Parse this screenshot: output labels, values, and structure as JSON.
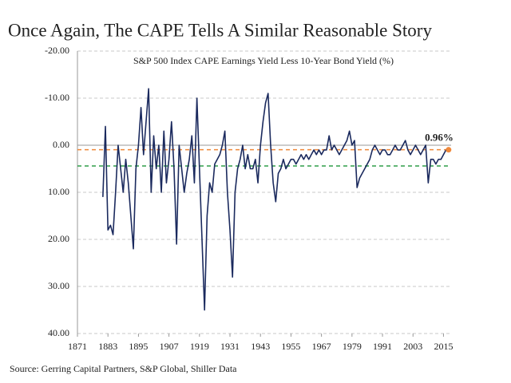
{
  "chart_data": {
    "type": "line",
    "title": "Once Again, The CAPE Tells A Similar Reasonable Story",
    "subtitle": "S&P 500 Index CAPE Earnings Yield Less 10-Year Bond Yield (%)",
    "source": "Source: Gerring Capital Partners, S&P Global, Shiller Data",
    "x": [
      1881,
      1882,
      1883,
      1884,
      1885,
      1886,
      1887,
      1888,
      1889,
      1890,
      1891,
      1892,
      1893,
      1894,
      1895,
      1896,
      1897,
      1898,
      1899,
      1900,
      1901,
      1902,
      1903,
      1904,
      1905,
      1906,
      1907,
      1908,
      1909,
      1910,
      1911,
      1912,
      1913,
      1914,
      1915,
      1916,
      1917,
      1918,
      1919,
      1920,
      1921,
      1922,
      1923,
      1924,
      1925,
      1926,
      1927,
      1928,
      1929,
      1930,
      1931,
      1932,
      1933,
      1934,
      1935,
      1936,
      1937,
      1938,
      1939,
      1940,
      1941,
      1942,
      1943,
      1944,
      1945,
      1946,
      1947,
      1948,
      1949,
      1950,
      1951,
      1952,
      1953,
      1954,
      1955,
      1956,
      1957,
      1958,
      1959,
      1960,
      1961,
      1962,
      1963,
      1964,
      1965,
      1966,
      1967,
      1968,
      1969,
      1970,
      1971,
      1972,
      1973,
      1974,
      1975,
      1976,
      1977,
      1978,
      1979,
      1980,
      1981,
      1982,
      1983,
      1984,
      1985,
      1986,
      1987,
      1988,
      1989,
      1990,
      1991,
      1992,
      1993,
      1994,
      1995,
      1996,
      1997,
      1998,
      1999,
      2000,
      2001,
      2002,
      2003,
      2004,
      2005,
      2006,
      2007,
      2008,
      2009,
      2010,
      2011,
      2012,
      2013,
      2014,
      2015,
      2016,
      2017
    ],
    "series": [
      {
        "color": "#1b2a5e",
        "values": [
          11,
          -4,
          18,
          17,
          19,
          10,
          0,
          5,
          10,
          3,
          8,
          15,
          22,
          5,
          0,
          -8,
          2,
          -5,
          -12,
          10,
          -2,
          5,
          0,
          10,
          -3,
          8,
          3,
          -5,
          5,
          21,
          0,
          5,
          10,
          6,
          3,
          -2,
          8,
          -10,
          5,
          20,
          35,
          15,
          8,
          10,
          4,
          3,
          2,
          0,
          -3,
          10,
          18,
          28,
          10,
          5,
          3,
          0,
          5,
          2,
          5,
          5,
          3,
          8,
          0,
          -5,
          -9,
          -11,
          0,
          8,
          12,
          6,
          5,
          3,
          5,
          4,
          3,
          3,
          4,
          3,
          2,
          3,
          2,
          3,
          2,
          1,
          2,
          1,
          2,
          1,
          1,
          -2,
          1,
          0,
          1,
          2,
          1,
          0,
          -1,
          -3,
          0,
          -1,
          9,
          7,
          6,
          5,
          4,
          3,
          1,
          0,
          1,
          2,
          1,
          1,
          2,
          2,
          1,
          0,
          1,
          1,
          0,
          -1,
          1,
          2,
          1,
          0,
          1,
          2,
          1,
          0,
          8,
          3,
          3,
          4,
          3,
          3,
          2,
          1,
          0.96
        ]
      }
    ],
    "reference_lines": [
      {
        "value": 0.96,
        "color": "#f0883a"
      },
      {
        "value": 4.4,
        "color": "#2f9e48"
      }
    ],
    "annotation": {
      "value": 0.96,
      "label": "0.96%",
      "color": "#f0883a"
    },
    "xlim": [
      1871,
      2018
    ],
    "xticks": [
      1871,
      1883,
      1895,
      1907,
      1919,
      1931,
      1943,
      1955,
      1967,
      1979,
      1991,
      2003,
      2015
    ],
    "ylim": [
      -20,
      40
    ],
    "invert_y": true,
    "yticks": [
      {
        "value": -20,
        "label": "-20.00"
      },
      {
        "value": -10,
        "label": "-10.00"
      },
      {
        "value": 0,
        "label": "0.00"
      },
      {
        "value": 10,
        "label": "10.00"
      },
      {
        "value": 20,
        "label": "20.00"
      },
      {
        "value": 30,
        "label": "30.00"
      },
      {
        "value": 40,
        "label": "40.00"
      }
    ],
    "grid": true
  }
}
